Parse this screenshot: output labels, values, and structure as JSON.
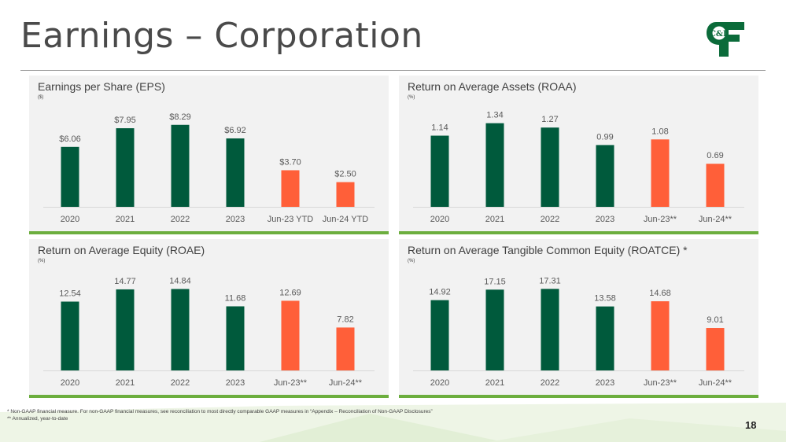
{
  "page": {
    "title": "Earnings – Corporation",
    "page_number": "18",
    "logo_text": "C&F",
    "footnotes": [
      "*  Non-GAAP financial measure.  For non-GAAP financial measures, see reconciliation to most directly comparable GAAP measures in “Appendix – Reconciliation of Non-GAAP Disclosures”",
      "** Annualized, year-to-date"
    ]
  },
  "colors": {
    "historical": "#005a3c",
    "current": "#ff5f39",
    "accent_bar": "#6cae3e"
  },
  "chart_data": [
    {
      "type": "bar",
      "title": "Earnings per Share (EPS)",
      "unit": "($)",
      "categories": [
        "2020",
        "2021",
        "2022",
        "2023",
        "Jun-23 YTD",
        "Jun-24 YTD"
      ],
      "values": [
        6.06,
        7.95,
        8.29,
        6.92,
        3.7,
        2.5
      ],
      "labels": [
        "$6.06",
        "$7.95",
        "$8.29",
        "$6.92",
        "$3.70",
        "$2.50"
      ],
      "highlight": [
        false,
        false,
        false,
        false,
        true,
        true
      ],
      "ylim": [
        0,
        10.1
      ]
    },
    {
      "type": "bar",
      "title": "Return on Average Assets (ROAA)",
      "unit": "(%)",
      "categories": [
        "2020",
        "2021",
        "2022",
        "2023",
        "Jun-23**",
        "Jun-24**"
      ],
      "values": [
        1.14,
        1.34,
        1.27,
        0.99,
        1.08,
        0.69
      ],
      "labels": [
        "1.14",
        "1.34",
        "1.27",
        "0.99",
        "1.08",
        "0.69"
      ],
      "highlight": [
        false,
        false,
        false,
        false,
        true,
        true
      ],
      "ylim": [
        0,
        1.6
      ]
    },
    {
      "type": "bar",
      "title": "Return on Average Equity (ROAE)",
      "unit": "(%)",
      "categories": [
        "2020",
        "2021",
        "2022",
        "2023",
        "Jun-23**",
        "Jun-24**"
      ],
      "values": [
        12.54,
        14.77,
        14.84,
        11.68,
        12.69,
        7.82
      ],
      "labels": [
        "12.54",
        "14.77",
        "14.84",
        "11.68",
        "12.69",
        "7.82"
      ],
      "highlight": [
        false,
        false,
        false,
        false,
        true,
        true
      ],
      "ylim": [
        0,
        18.2
      ]
    },
    {
      "type": "bar",
      "title": "Return on Average Tangible Common Equity (ROATCE) *",
      "unit": "(%)",
      "categories": [
        "2020",
        "2021",
        "2022",
        "2023",
        "Jun-23**",
        "Jun-24**"
      ],
      "values": [
        14.92,
        17.15,
        17.31,
        13.58,
        14.68,
        9.01
      ],
      "labels": [
        "14.92",
        "17.15",
        "17.31",
        "13.58",
        "14.68",
        "9.01"
      ],
      "highlight": [
        false,
        false,
        false,
        false,
        true,
        true
      ],
      "ylim": [
        0,
        21.2
      ]
    }
  ]
}
